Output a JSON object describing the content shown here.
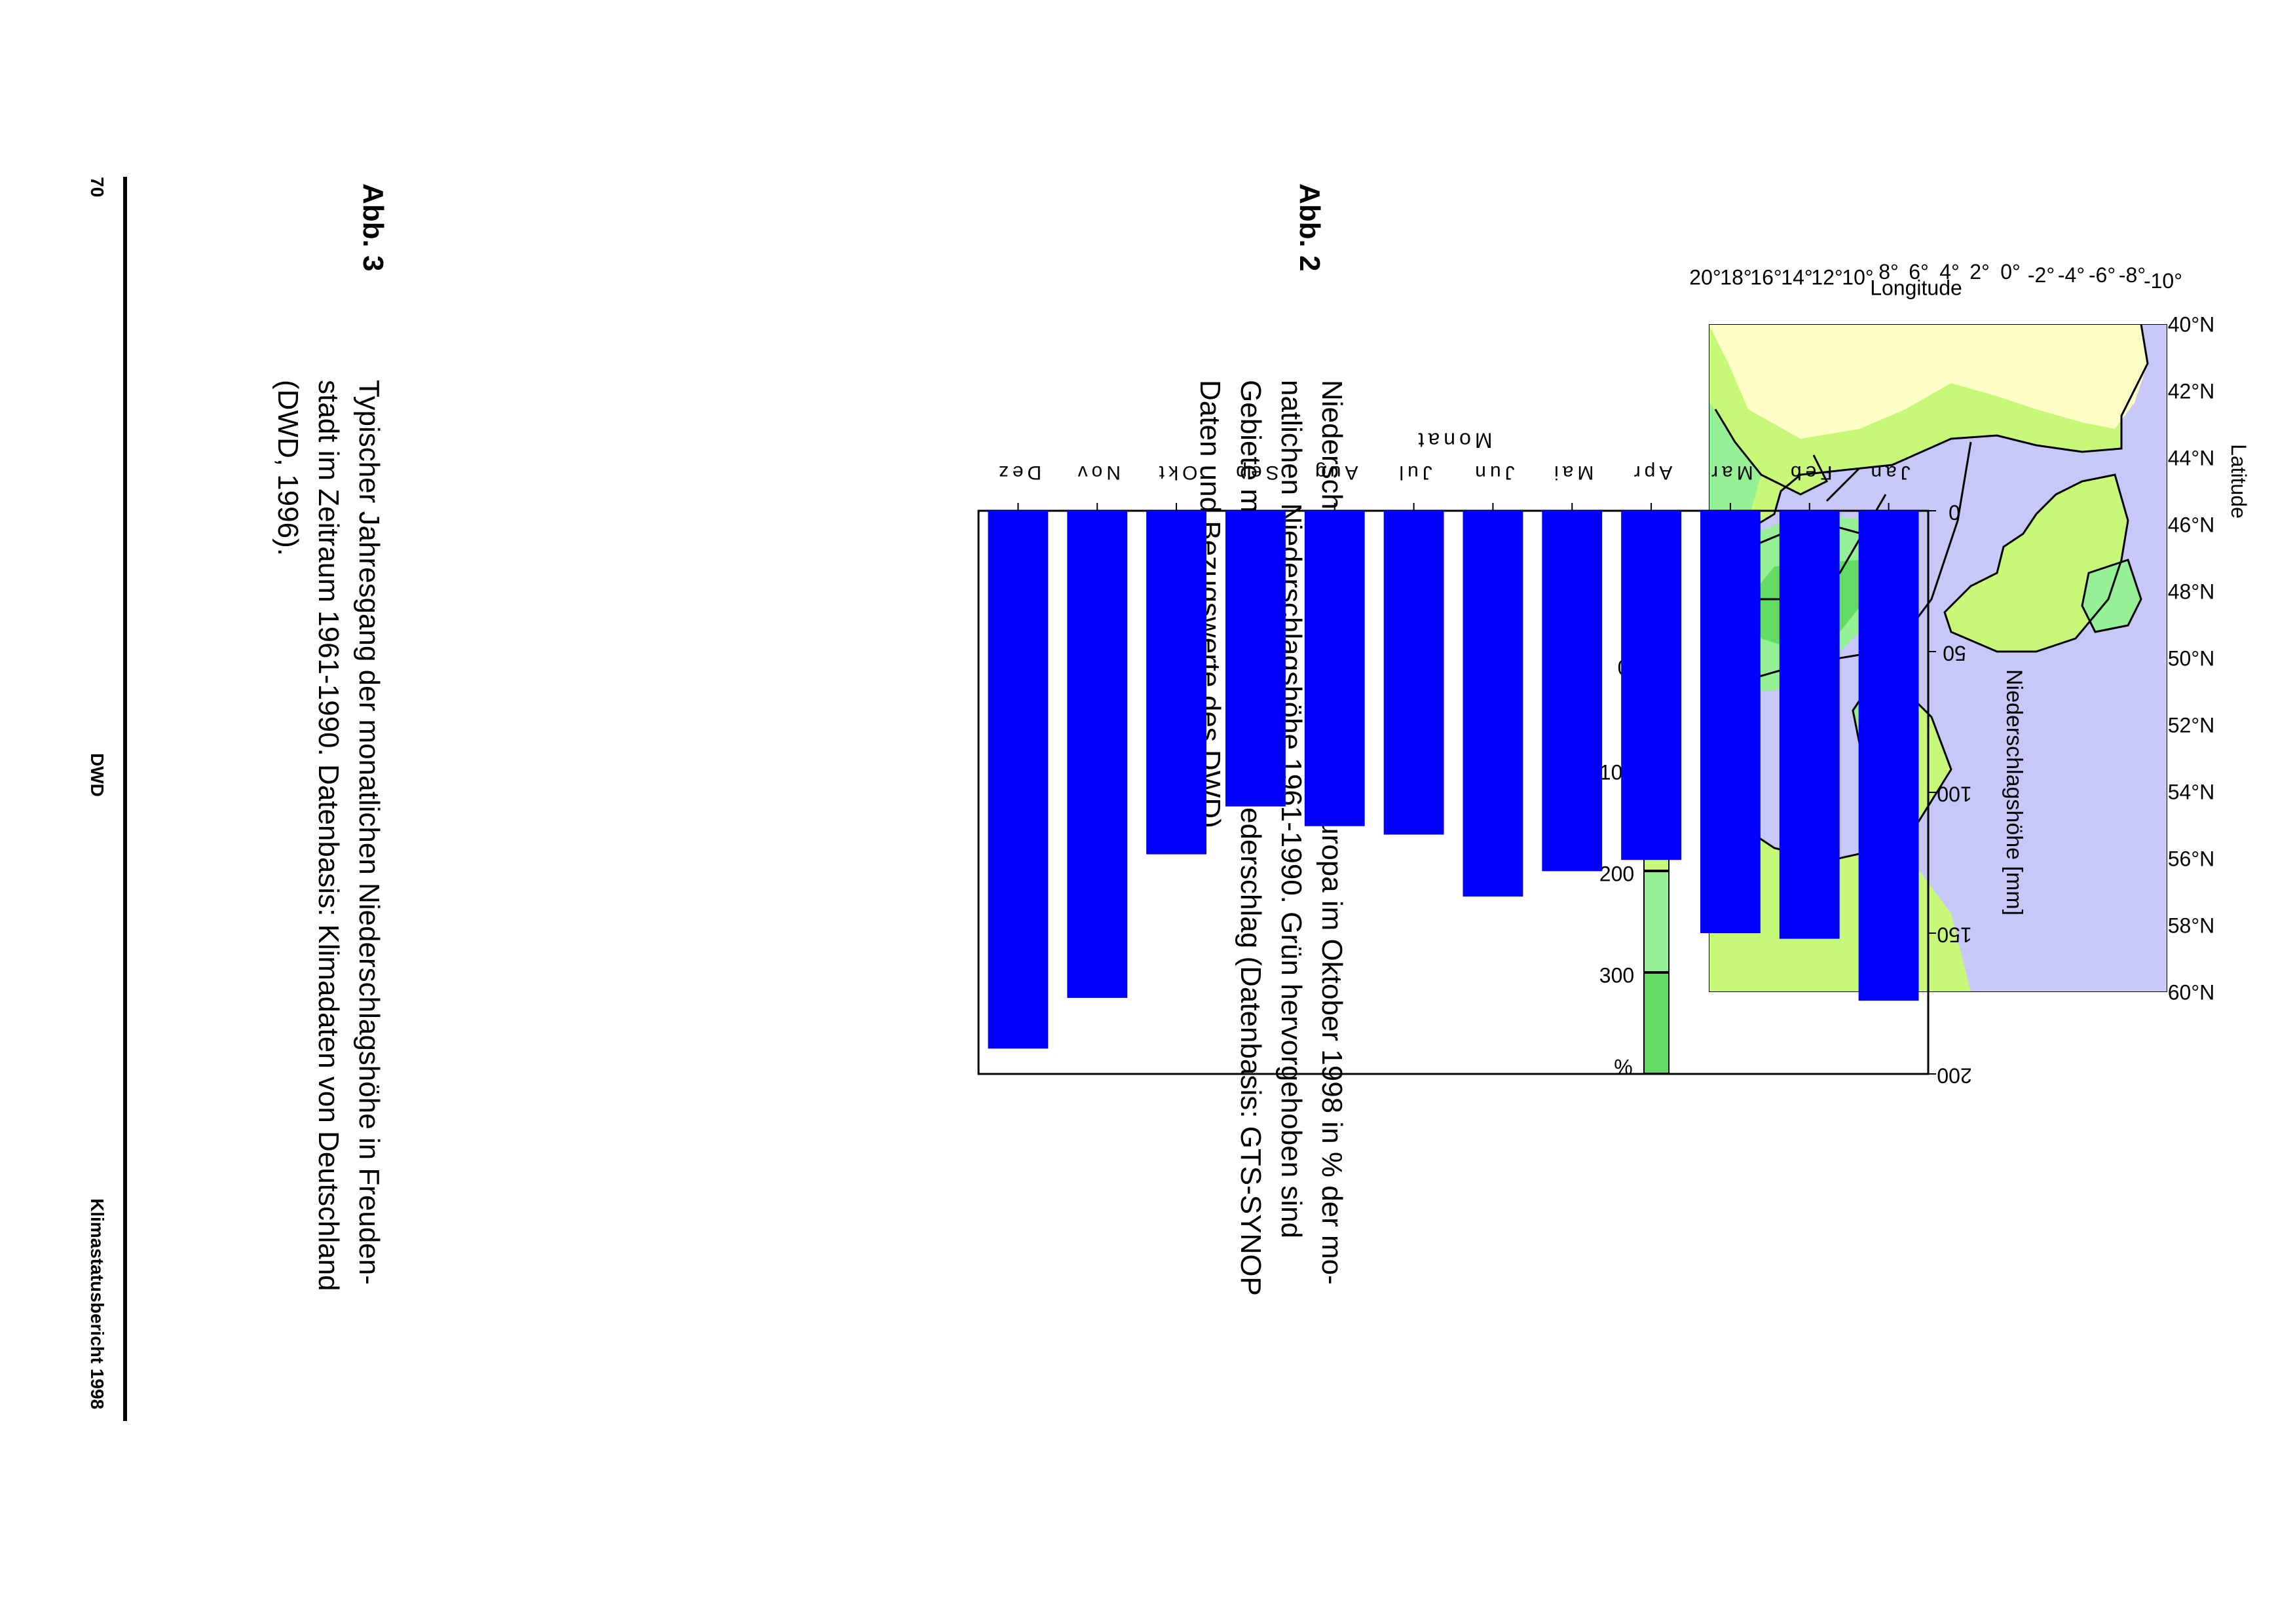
{
  "map": {
    "ylabel": "Latitude",
    "xlabel": "Longitude",
    "lat_ticks": [
      "40°N",
      "42°N",
      "44°N",
      "46°N",
      "48°N",
      "50°N",
      "52°N",
      "54°N",
      "56°N",
      "58°N",
      "60°N"
    ],
    "lon_ticks": [
      "-10°",
      "-8°",
      "-6°",
      "-4°",
      "-2°",
      "0°",
      "2°",
      "4°",
      "6°",
      "8°",
      "10°",
      "12°",
      "14°",
      "16°",
      "18°",
      "20°"
    ],
    "colors": {
      "sea": "#c8c8f8",
      "c0": "#ffffc8",
      "c1": "#c8f878",
      "c2": "#96f096",
      "c3": "#64dc64",
      "coast": "#000000"
    }
  },
  "legend": {
    "ticks": [
      "0",
      "100",
      "200",
      "300"
    ],
    "unit": "%",
    "colors": [
      "#ffffc8",
      "#c8f878",
      "#96f096",
      "#64dc64"
    ]
  },
  "caption2": {
    "label": "Abb. 2",
    "lines": [
      "Niederschlagsanomalien in Mitteleuropa im Oktober 1998 in % der mo-",
      "natlichen Niederschlagshöhe 1961-1990. Grün hervorgehoben sind",
      "Gebiete mit mindestens 100 % Niederschlag (Datenbasis: GTS-SYNOP",
      "Daten und Bezugswerte des DWD)."
    ]
  },
  "chart_data": {
    "type": "bar",
    "categories": [
      "Jan",
      "Feb",
      "Mar",
      "Apr",
      "Mai",
      "Jun",
      "Jul",
      "Aug",
      "Sep",
      "Okt",
      "Nov",
      "Dez"
    ],
    "values": [
      174,
      152,
      150,
      124,
      128,
      137,
      115,
      112,
      105,
      122,
      173,
      191
    ],
    "xlabel": "Monat",
    "ylabel": "Niederschlagshöhe [mm]",
    "ylim": [
      0,
      200
    ],
    "yticks": [
      "0",
      "50",
      "100",
      "150",
      "200"
    ],
    "bar_color": "#0000ff",
    "grid": false
  },
  "caption3": {
    "label": "Abb. 3",
    "lines": [
      "Typischer Jahresgang der monatlichen Niederschlagshöhe in Freuden-",
      "stadt im Zeitraum 1961-1990. Datenbasis: Klimadaten von Deutschland",
      "(DWD, 1996)."
    ]
  },
  "footer": {
    "page_number": "70",
    "center": "DWD",
    "right": "Klimastatusbericht 1998"
  }
}
